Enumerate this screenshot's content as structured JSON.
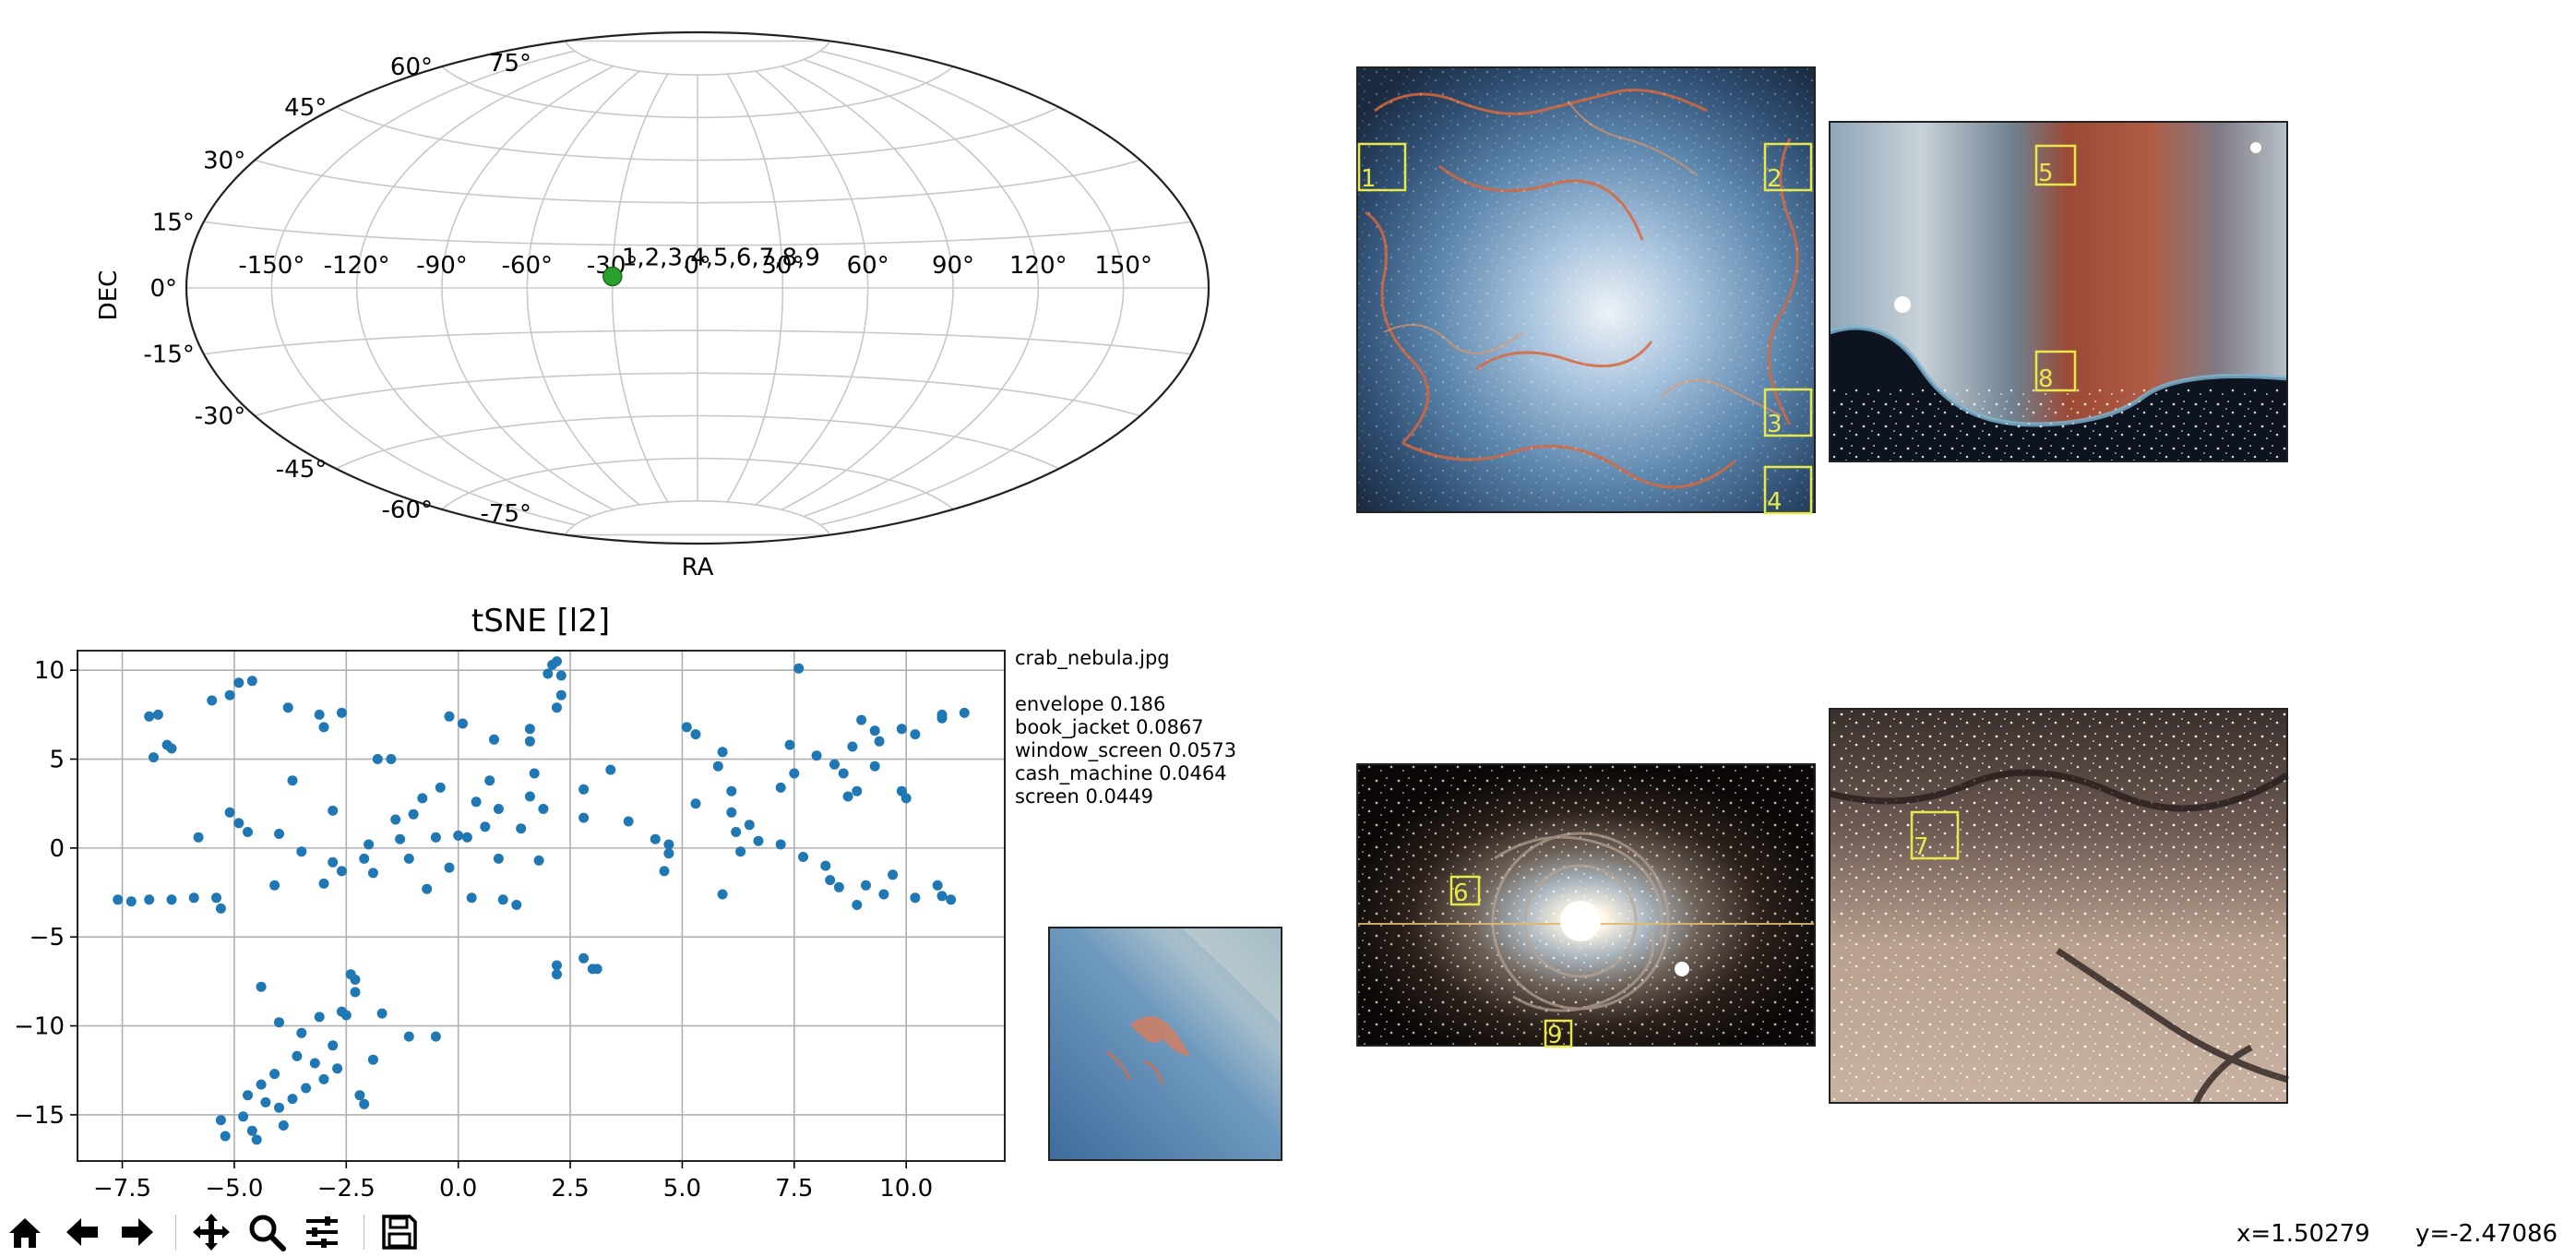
{
  "sky_map": {
    "dec_label": "DEC",
    "ra_label": "RA",
    "ra_ticks": [
      "-150°",
      "-120°",
      "-90°",
      "-60°",
      "-30°",
      "0°",
      "30°",
      "60°",
      "90°",
      "120°",
      "150°"
    ],
    "dec_ticks": [
      "75°",
      "60°",
      "45°",
      "30°",
      "15°",
      "0°",
      "-15°",
      "-30°",
      "-45°",
      "-60°",
      "-75°"
    ],
    "marker": {
      "ra_deg": -30,
      "dec_deg": 4,
      "label": "1,2,3,4,5,6,7,8,9",
      "color": "#2ca02c"
    }
  },
  "chart_data": {
    "type": "scatter",
    "title": "tSNE [l2]",
    "xlim": [
      -8.5,
      12.2
    ],
    "ylim": [
      -17.6,
      11.1
    ],
    "xticks": [
      -7.5,
      -5.0,
      -2.5,
      0.0,
      2.5,
      5.0,
      7.5,
      10.0
    ],
    "xtick_labels": [
      "−7.5",
      "−5.0",
      "−2.5",
      "0.0",
      "2.5",
      "5.0",
      "7.5",
      "10.0"
    ],
    "yticks": [
      10,
      5,
      0,
      -5,
      -10,
      -15
    ],
    "ytick_labels": [
      "10",
      "5",
      "0",
      "−5",
      "−10",
      "−15"
    ],
    "grid": true,
    "color": "#1f77b4",
    "points": [
      [
        -7.6,
        -2.9
      ],
      [
        -7.3,
        -3.0
      ],
      [
        -6.9,
        -2.9
      ],
      [
        -6.4,
        -2.9
      ],
      [
        -5.9,
        -2.8
      ],
      [
        -5.4,
        -2.8
      ],
      [
        -5.3,
        -3.4
      ],
      [
        -6.9,
        7.4
      ],
      [
        -6.7,
        7.5
      ],
      [
        -6.5,
        5.8
      ],
      [
        -6.4,
        5.6
      ],
      [
        -6.8,
        5.1
      ],
      [
        -5.8,
        0.6
      ],
      [
        -5.5,
        8.3
      ],
      [
        -5.1,
        8.6
      ],
      [
        -4.9,
        9.3
      ],
      [
        -4.6,
        9.4
      ],
      [
        -4.9,
        1.4
      ],
      [
        -4.7,
        0.9
      ],
      [
        -5.1,
        2.0
      ],
      [
        -4.1,
        -2.1
      ],
      [
        -4.0,
        0.8
      ],
      [
        -3.7,
        3.8
      ],
      [
        -3.5,
        -0.2
      ],
      [
        -3.8,
        7.9
      ],
      [
        -3.1,
        7.5
      ],
      [
        -3.0,
        6.8
      ],
      [
        -2.6,
        7.6
      ],
      [
        -2.8,
        2.1
      ],
      [
        -2.8,
        -0.8
      ],
      [
        -2.6,
        -1.3
      ],
      [
        -3.0,
        -2.0
      ],
      [
        -2.1,
        -0.6
      ],
      [
        -2.0,
        0.2
      ],
      [
        -1.9,
        -1.4
      ],
      [
        -1.8,
        5.0
      ],
      [
        -1.5,
        5.0
      ],
      [
        -1.4,
        1.6
      ],
      [
        -1.3,
        0.5
      ],
      [
        -1.1,
        -0.6
      ],
      [
        -1.0,
        1.9
      ],
      [
        -0.8,
        2.8
      ],
      [
        -0.7,
        -2.3
      ],
      [
        -0.5,
        0.6
      ],
      [
        -0.4,
        3.4
      ],
      [
        -0.2,
        -1.1
      ],
      [
        -0.2,
        7.4
      ],
      [
        0.0,
        0.7
      ],
      [
        0.1,
        7.0
      ],
      [
        0.2,
        0.6
      ],
      [
        0.3,
        -2.8
      ],
      [
        0.4,
        2.6
      ],
      [
        0.6,
        1.2
      ],
      [
        0.7,
        3.8
      ],
      [
        0.8,
        6.1
      ],
      [
        0.9,
        2.2
      ],
      [
        0.9,
        -0.6
      ],
      [
        1.0,
        -2.9
      ],
      [
        1.3,
        -3.2
      ],
      [
        1.4,
        1.1
      ],
      [
        1.6,
        6.0
      ],
      [
        1.6,
        6.7
      ],
      [
        1.7,
        4.2
      ],
      [
        1.8,
        -0.7
      ],
      [
        1.6,
        2.9
      ],
      [
        1.9,
        2.2
      ],
      [
        2.0,
        9.8
      ],
      [
        2.1,
        10.3
      ],
      [
        2.2,
        10.5
      ],
      [
        2.3,
        9.7
      ],
      [
        2.2,
        7.9
      ],
      [
        2.3,
        8.6
      ],
      [
        2.2,
        -6.6
      ],
      [
        2.2,
        -7.1
      ],
      [
        2.8,
        3.3
      ],
      [
        2.8,
        1.7
      ],
      [
        2.8,
        -6.2
      ],
      [
        3.0,
        -6.8
      ],
      [
        3.1,
        -6.8
      ],
      [
        3.4,
        4.4
      ],
      [
        3.8,
        1.5
      ],
      [
        4.4,
        0.5
      ],
      [
        4.7,
        0.2
      ],
      [
        4.7,
        -0.3
      ],
      [
        4.6,
        -1.3
      ],
      [
        5.1,
        6.8
      ],
      [
        5.3,
        6.4
      ],
      [
        5.3,
        2.5
      ],
      [
        5.8,
        4.6
      ],
      [
        5.9,
        5.4
      ],
      [
        5.9,
        -2.6
      ],
      [
        6.1,
        3.2
      ],
      [
        6.1,
        2.0
      ],
      [
        6.2,
        0.9
      ],
      [
        6.3,
        -0.2
      ],
      [
        6.5,
        1.3
      ],
      [
        6.7,
        0.4
      ],
      [
        7.2,
        0.2
      ],
      [
        7.2,
        3.4
      ],
      [
        7.4,
        5.8
      ],
      [
        7.5,
        4.2
      ],
      [
        7.6,
        10.1
      ],
      [
        7.7,
        -0.5
      ],
      [
        8.0,
        5.2
      ],
      [
        8.2,
        -1.0
      ],
      [
        8.3,
        -1.8
      ],
      [
        8.4,
        4.7
      ],
      [
        8.5,
        -2.2
      ],
      [
        8.6,
        4.2
      ],
      [
        8.7,
        2.9
      ],
      [
        8.8,
        5.7
      ],
      [
        8.9,
        -3.2
      ],
      [
        8.9,
        3.2
      ],
      [
        9.0,
        7.2
      ],
      [
        9.1,
        -2.1
      ],
      [
        9.3,
        6.6
      ],
      [
        9.3,
        4.6
      ],
      [
        9.4,
        6.0
      ],
      [
        9.5,
        -2.6
      ],
      [
        9.7,
        -1.5
      ],
      [
        9.9,
        6.7
      ],
      [
        9.9,
        3.2
      ],
      [
        10.0,
        2.8
      ],
      [
        10.2,
        6.4
      ],
      [
        10.2,
        -2.8
      ],
      [
        10.7,
        -2.1
      ],
      [
        10.8,
        7.3
      ],
      [
        10.8,
        7.5
      ],
      [
        10.8,
        -2.7
      ],
      [
        11.0,
        -2.9
      ],
      [
        11.3,
        7.6
      ],
      [
        -5.3,
        -15.3
      ],
      [
        -5.2,
        -16.2
      ],
      [
        -4.8,
        -15.1
      ],
      [
        -4.7,
        -13.9
      ],
      [
        -4.6,
        -15.9
      ],
      [
        -4.5,
        -16.4
      ],
      [
        -4.4,
        -13.3
      ],
      [
        -4.3,
        -14.3
      ],
      [
        -4.1,
        -12.7
      ],
      [
        -4.0,
        -9.8
      ],
      [
        -4.0,
        -14.6
      ],
      [
        -3.9,
        -15.6
      ],
      [
        -3.7,
        -14.1
      ],
      [
        -3.6,
        -11.7
      ],
      [
        -3.5,
        -10.4
      ],
      [
        -3.4,
        -13.5
      ],
      [
        -3.2,
        -12.1
      ],
      [
        -3.1,
        -9.5
      ],
      [
        -3.0,
        -13.0
      ],
      [
        -2.8,
        -11.1
      ],
      [
        -2.7,
        -12.4
      ],
      [
        -2.6,
        -9.2
      ],
      [
        -2.5,
        -9.4
      ],
      [
        -2.4,
        -7.1
      ],
      [
        -2.3,
        -7.4
      ],
      [
        -2.3,
        -8.1
      ],
      [
        -2.2,
        -13.9
      ],
      [
        -2.1,
        -14.4
      ],
      [
        -1.9,
        -11.9
      ],
      [
        -1.7,
        -9.3
      ],
      [
        -1.1,
        -10.6
      ],
      [
        -0.5,
        -10.6
      ],
      [
        -4.4,
        -7.8
      ]
    ]
  },
  "info_panel": {
    "filename": "crab_nebula.jpg",
    "predictions": [
      "envelope 0.186",
      "book_jacket 0.0867",
      "window_screen 0.0573",
      "cash_machine 0.0464",
      "screen 0.0449"
    ]
  },
  "thumbnails": {
    "image_1": {
      "box_labels": [
        "1",
        "2",
        "3",
        "4"
      ]
    },
    "image_2": {
      "box_labels": [
        "5",
        "8"
      ]
    },
    "image_3": {
      "box_labels": [
        "6",
        "9"
      ]
    },
    "image_4": {
      "box_labels": [
        "7"
      ]
    }
  },
  "toolbar": {
    "icons": [
      "home-icon",
      "back-arrow-icon",
      "forward-arrow-icon",
      "pan-icon",
      "zoom-icon",
      "configure-icon",
      "save-icon"
    ]
  },
  "status": {
    "x_readout": "x=1.50279",
    "y_readout": "y=-2.47086"
  }
}
